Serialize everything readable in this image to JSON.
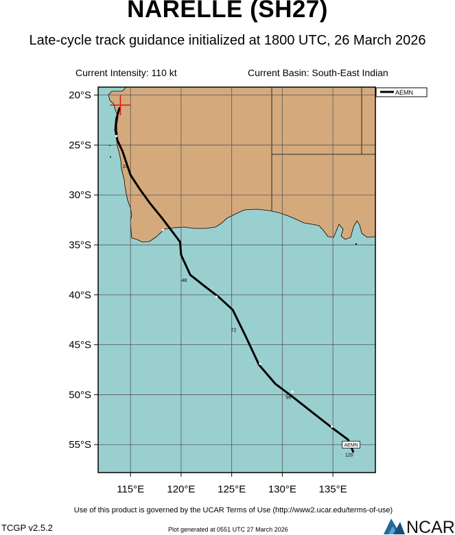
{
  "header": {
    "title": "NARELLE (SH27)",
    "subtitle": "Late-cycle track guidance initialized at 1800 UTC, 26 March 2026",
    "intensity": "Current Intensity: 110 kt",
    "basin": "Current Basin: South-East Indian"
  },
  "map": {
    "lat_ticks": [
      "20°S",
      "25°S",
      "30°S",
      "35°S",
      "40°S",
      "45°S",
      "50°S",
      "55°S"
    ],
    "lon_ticks": [
      "115°E",
      "120°E",
      "125°E",
      "130°E",
      "135°E"
    ],
    "colors": {
      "ocean": "#9acfcf",
      "land": "#d4aa7d",
      "track": "#000000",
      "grid": "#555555"
    },
    "legend": {
      "label": "AEMN"
    },
    "track": {
      "model": "AEMN",
      "points": [
        [
          113.9,
          -21.3
        ],
        [
          113.6,
          -22.4
        ],
        [
          113.5,
          -23.5
        ],
        [
          113.7,
          -24.5
        ],
        [
          114.2,
          -25.6
        ],
        [
          114.6,
          -26.8
        ],
        [
          115.0,
          -28.0
        ],
        [
          115.9,
          -29.4
        ],
        [
          116.9,
          -30.8
        ],
        [
          118.1,
          -32.3
        ],
        [
          119.0,
          -33.5
        ],
        [
          119.9,
          -34.7
        ],
        [
          120.0,
          -36.0
        ],
        [
          120.9,
          -38.0
        ],
        [
          122.4,
          -39.2
        ],
        [
          123.7,
          -40.2
        ],
        [
          125.1,
          -41.5
        ],
        [
          126.4,
          -44.2
        ],
        [
          127.7,
          -47.0
        ],
        [
          129.3,
          -48.9
        ],
        [
          131.0,
          -50.2
        ],
        [
          133.0,
          -51.8
        ],
        [
          134.9,
          -53.3
        ],
        [
          136.5,
          -54.5
        ],
        [
          137.0,
          -55.7
        ]
      ],
      "markers": [
        {
          "lon": 113.6,
          "lat": -24.1
        },
        {
          "lon": 118.2,
          "lat": -33.5
        },
        {
          "lon": 123.5,
          "lat": -40.2
        },
        {
          "lon": 127.8,
          "lat": -46.9
        },
        {
          "lon": 131.0,
          "lat": -49.7
        },
        {
          "lon": 134.9,
          "lat": -53.2
        }
      ],
      "hour_labels": [
        {
          "text": "24",
          "lon": 114.5,
          "lat": -27.3
        },
        {
          "text": "48",
          "lon": 120.3,
          "lat": -38.7
        },
        {
          "text": "72",
          "lon": 125.2,
          "lat": -43.7
        },
        {
          "text": "96",
          "lon": 130.6,
          "lat": -50.4
        },
        {
          "text": "120",
          "lon": 136.6,
          "lat": -56.2
        }
      ],
      "end_label": {
        "text": "AEMN",
        "lon": 136.8,
        "lat": -55.0
      }
    },
    "current_position": {
      "lon": 114.0,
      "lat": -21.0
    },
    "extent": {
      "lon": [
        111.8,
        139.2
      ],
      "lat": [
        -57.8,
        -19.2
      ]
    }
  },
  "footer": {
    "terms": "Use of this product is governed by the UCAR Terms of Use (http://www2.ucar.edu/terms-of-use)",
    "version": "TCGP v2.5.2",
    "generated": "Plot generated at 0551 UTC   27 March 2026",
    "logo_text": "NCAR"
  }
}
